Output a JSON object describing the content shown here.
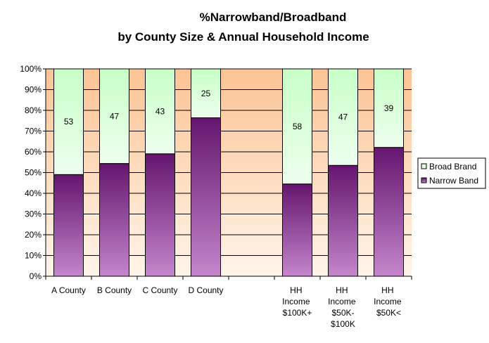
{
  "chart_data": {
    "type": "bar",
    "stacking": "percent",
    "title": [
      "%Narrowband/Broadband",
      "by County Size & Annual Household Income"
    ],
    "categories": [
      "A County",
      "B County",
      "C County",
      "D County",
      null,
      "HH Income $100K+",
      "HH Income $50K-$100K",
      "HH Income $50K<"
    ],
    "series": [
      {
        "name": "Narrow Band",
        "color": "#7a2a8a",
        "values": [
          51,
          56,
          62,
          81,
          null,
          46.5,
          54,
          64
        ]
      },
      {
        "name": "Broad Brand",
        "color": "#ccffcc",
        "values": [
          53,
          47,
          43,
          25,
          null,
          58,
          47,
          39
        ]
      }
    ],
    "label_series": 1,
    "ylim": [
      0,
      100
    ],
    "yticks": [
      {
        "value": 0,
        "label": "0%"
      },
      {
        "value": 10,
        "label": "10%"
      },
      {
        "value": 20,
        "label": "20%"
      },
      {
        "value": 30,
        "label": "30%"
      },
      {
        "value": 40,
        "label": "40%"
      },
      {
        "value": 50,
        "label": "50%"
      },
      {
        "value": 60,
        "label": "60%"
      },
      {
        "value": 70,
        "label": "70%"
      },
      {
        "value": 80,
        "label": "80%"
      },
      {
        "value": 90,
        "label": "90%"
      },
      {
        "value": 100,
        "label": "100%"
      }
    ],
    "grid": true,
    "legend": "right"
  }
}
